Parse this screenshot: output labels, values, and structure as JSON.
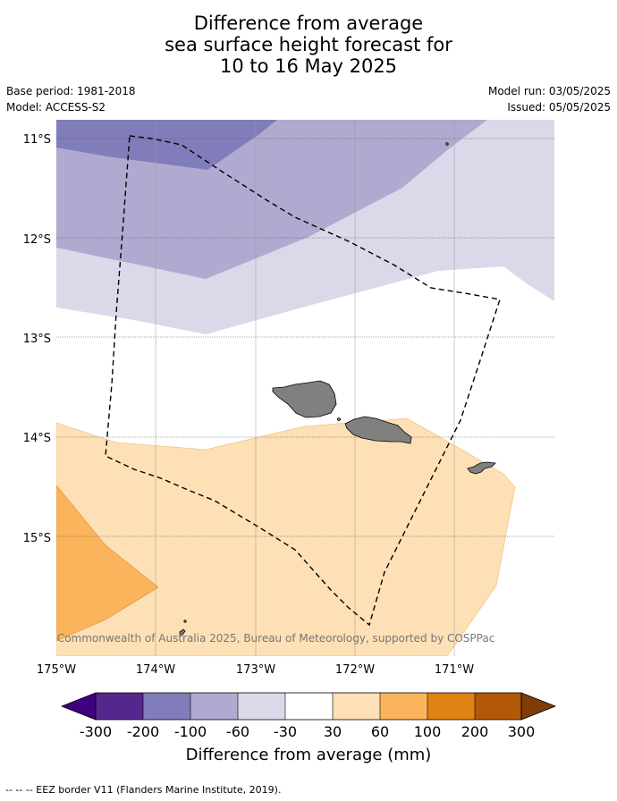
{
  "header": {
    "title_lines": [
      "Difference from average",
      "sea surface height forecast for",
      "10 to 16 May 2025"
    ],
    "base_period": "Base period: 1981-2018",
    "model": "Model: ACCESS-S2",
    "model_run": "Model run: 03/05/2025",
    "issued": "Issued: 05/05/2025"
  },
  "map": {
    "lat_labels": [
      "11°S",
      "12°S",
      "13°S",
      "14°S",
      "15°S"
    ],
    "lon_labels": [
      "175°W",
      "174°W",
      "173°W",
      "172°W",
      "171°W"
    ],
    "copyright": "© Commonwealth of Australia 2025, Bureau of Meteorology, supported by COSPPac",
    "land_color": "#808080"
  },
  "colorbar": {
    "ticks": [
      "-300",
      "-200",
      "-100",
      "-60",
      "-30",
      "30",
      "60",
      "100",
      "200",
      "300"
    ],
    "colors": [
      "#3f007d",
      "#54278f",
      "#807dba",
      "#b0aad0",
      "#d9d9ea",
      "#ffffff",
      "#fde0b5",
      "#fbb45c",
      "#e08214",
      "#b35806",
      "#7f3b08"
    ],
    "label": "Difference from average (mm)"
  },
  "footer": {
    "legend": "-- -- -- EEZ border V11 (Flanders Marine Institute, 2019)."
  }
}
